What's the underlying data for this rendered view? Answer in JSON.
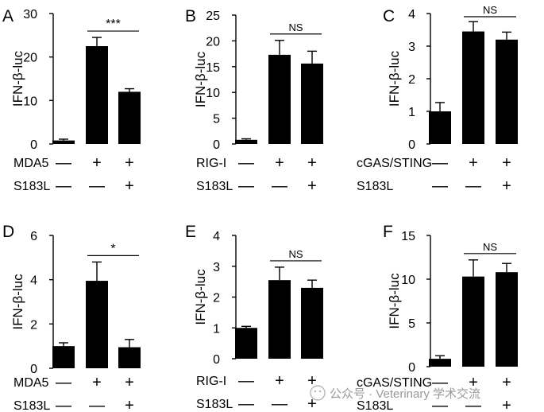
{
  "figure": {
    "watermark": "公众号 · Veterinary 学术交流"
  },
  "chart_data": [
    {
      "panel": "A",
      "type": "bar",
      "ylabel": "IFN-β-luc",
      "ylim": [
        0,
        30
      ],
      "yticks": [
        0,
        10,
        20,
        30
      ],
      "values": [
        0.8,
        22.5,
        12.0
      ],
      "errors": [
        0.3,
        2.0,
        0.7
      ],
      "conditions": [
        {
          "label": "MDA5",
          "signs": [
            "—",
            "+",
            "+"
          ]
        },
        {
          "label": "S183L",
          "signs": [
            "—",
            "—",
            "+"
          ]
        }
      ],
      "significance": {
        "text": "***",
        "from": 1,
        "to": 2
      }
    },
    {
      "panel": "B",
      "type": "bar",
      "ylabel": "IFN-β-luc",
      "ylim": [
        0,
        25
      ],
      "yticks": [
        0,
        5,
        10,
        15,
        20,
        25
      ],
      "values": [
        0.8,
        17.3,
        15.6
      ],
      "errors": [
        0.2,
        2.8,
        2.4
      ],
      "conditions": [
        {
          "label": "RIG-I",
          "signs": [
            "—",
            "+",
            "+"
          ]
        },
        {
          "label": "S183L",
          "signs": [
            "—",
            "—",
            "+"
          ]
        }
      ],
      "significance": {
        "text": "NS",
        "from": 1,
        "to": 2
      }
    },
    {
      "panel": "C",
      "type": "bar",
      "ylabel": "IFN-β-luc",
      "ylim": [
        0,
        4
      ],
      "yticks": [
        0,
        1,
        2,
        3,
        4
      ],
      "values": [
        1.0,
        3.45,
        3.2
      ],
      "errors": [
        0.27,
        0.3,
        0.23
      ],
      "conditions": [
        {
          "label": "cGAS/STING",
          "signs": [
            "—",
            "+",
            "+"
          ]
        },
        {
          "label": "S183L",
          "signs": [
            "—",
            "—",
            "+"
          ]
        }
      ],
      "significance": {
        "text": "NS",
        "from": 1,
        "to": 2
      }
    },
    {
      "panel": "D",
      "type": "bar",
      "ylabel": "IFN-β-luc",
      "ylim": [
        0,
        6
      ],
      "yticks": [
        0,
        2,
        4,
        6
      ],
      "values": [
        1.0,
        3.95,
        0.95
      ],
      "errors": [
        0.15,
        0.85,
        0.35
      ],
      "conditions": [
        {
          "label": "MDA5",
          "signs": [
            "—",
            "+",
            "+"
          ]
        },
        {
          "label": "S183L",
          "signs": [
            "—",
            "—",
            "+"
          ]
        }
      ],
      "significance": {
        "text": "*",
        "from": 1,
        "to": 2
      }
    },
    {
      "panel": "E",
      "type": "bar",
      "ylabel": "IFN-β-luc",
      "ylim": [
        0,
        4
      ],
      "yticks": [
        0,
        1,
        2,
        3,
        4
      ],
      "values": [
        1.0,
        2.55,
        2.3
      ],
      "errors": [
        0.05,
        0.42,
        0.25
      ],
      "conditions": [
        {
          "label": "RIG-I",
          "signs": [
            "—",
            "+",
            "+"
          ]
        },
        {
          "label": "S183L",
          "signs": [
            "—",
            "—",
            "+"
          ]
        }
      ],
      "significance": {
        "text": "NS",
        "from": 1,
        "to": 2
      }
    },
    {
      "panel": "F",
      "type": "bar",
      "ylabel": "IFN-β-luc",
      "ylim": [
        0,
        15
      ],
      "yticks": [
        0,
        5,
        10,
        15
      ],
      "values": [
        0.9,
        10.3,
        10.8
      ],
      "errors": [
        0.35,
        1.9,
        1.0
      ],
      "conditions": [
        {
          "label": "cGAS/STING",
          "signs": [
            "—",
            "+",
            "+"
          ]
        },
        {
          "label": "S183L",
          "signs": [
            "—",
            "—",
            "+"
          ]
        }
      ],
      "significance": {
        "text": "NS",
        "from": 1,
        "to": 2
      }
    }
  ]
}
